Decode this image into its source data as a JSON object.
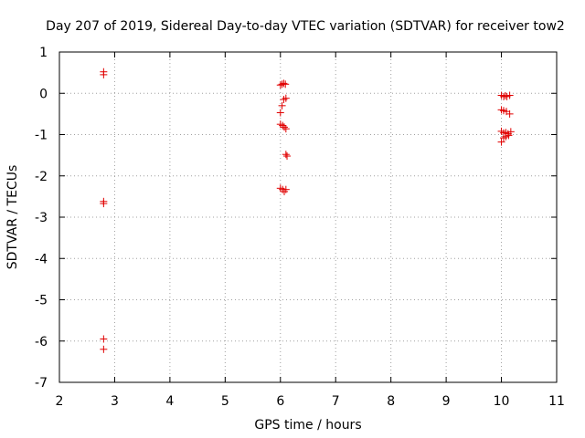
{
  "chart_data": {
    "type": "scatter",
    "title": "Day 207 of 2019, Sidereal Day-to-day VTEC variation (SDTVAR) for receiver tow2",
    "xlabel": "GPS time / hours",
    "ylabel": "SDTVAR / TECUs",
    "xlim": [
      2,
      11
    ],
    "ylim": [
      -7,
      1
    ],
    "xticks": [
      2,
      3,
      4,
      5,
      6,
      7,
      8,
      9,
      10,
      11
    ],
    "yticks": [
      1,
      0,
      -1,
      -2,
      -3,
      -4,
      -5,
      -6,
      -7
    ],
    "grid": true,
    "marker": "+",
    "color": "#e00000",
    "series": [
      {
        "name": "SDTVAR",
        "points": [
          [
            2.8,
            0.52
          ],
          [
            2.8,
            0.45
          ],
          [
            2.8,
            -2.62
          ],
          [
            2.8,
            -2.67
          ],
          [
            2.8,
            -5.95
          ],
          [
            2.8,
            -6.2
          ],
          [
            6.0,
            0.2
          ],
          [
            6.03,
            0.22
          ],
          [
            6.06,
            0.24
          ],
          [
            6.09,
            0.22
          ],
          [
            6.03,
            -0.3
          ],
          [
            6.06,
            -0.15
          ],
          [
            6.1,
            -0.12
          ],
          [
            6.0,
            -0.47
          ],
          [
            6.0,
            -0.75
          ],
          [
            6.04,
            -0.78
          ],
          [
            6.07,
            -0.82
          ],
          [
            6.1,
            -0.86
          ],
          [
            6.1,
            -1.48
          ],
          [
            6.12,
            -1.52
          ],
          [
            6.0,
            -2.3
          ],
          [
            6.04,
            -2.33
          ],
          [
            6.07,
            -2.38
          ],
          [
            6.1,
            -2.33
          ],
          [
            10.0,
            -0.05
          ],
          [
            10.04,
            -0.08
          ],
          [
            10.07,
            -0.06
          ],
          [
            10.1,
            -0.08
          ],
          [
            10.15,
            -0.05
          ],
          [
            10.0,
            -0.4
          ],
          [
            10.04,
            -0.42
          ],
          [
            10.09,
            -0.44
          ],
          [
            10.15,
            -0.5
          ],
          [
            10.0,
            -0.92
          ],
          [
            10.04,
            -0.96
          ],
          [
            10.08,
            -0.95
          ],
          [
            10.12,
            -0.98
          ],
          [
            10.17,
            -0.93
          ],
          [
            10.0,
            -1.18
          ],
          [
            10.04,
            -1.08
          ],
          [
            10.08,
            -1.05
          ],
          [
            10.13,
            -1.02
          ]
        ]
      }
    ]
  }
}
